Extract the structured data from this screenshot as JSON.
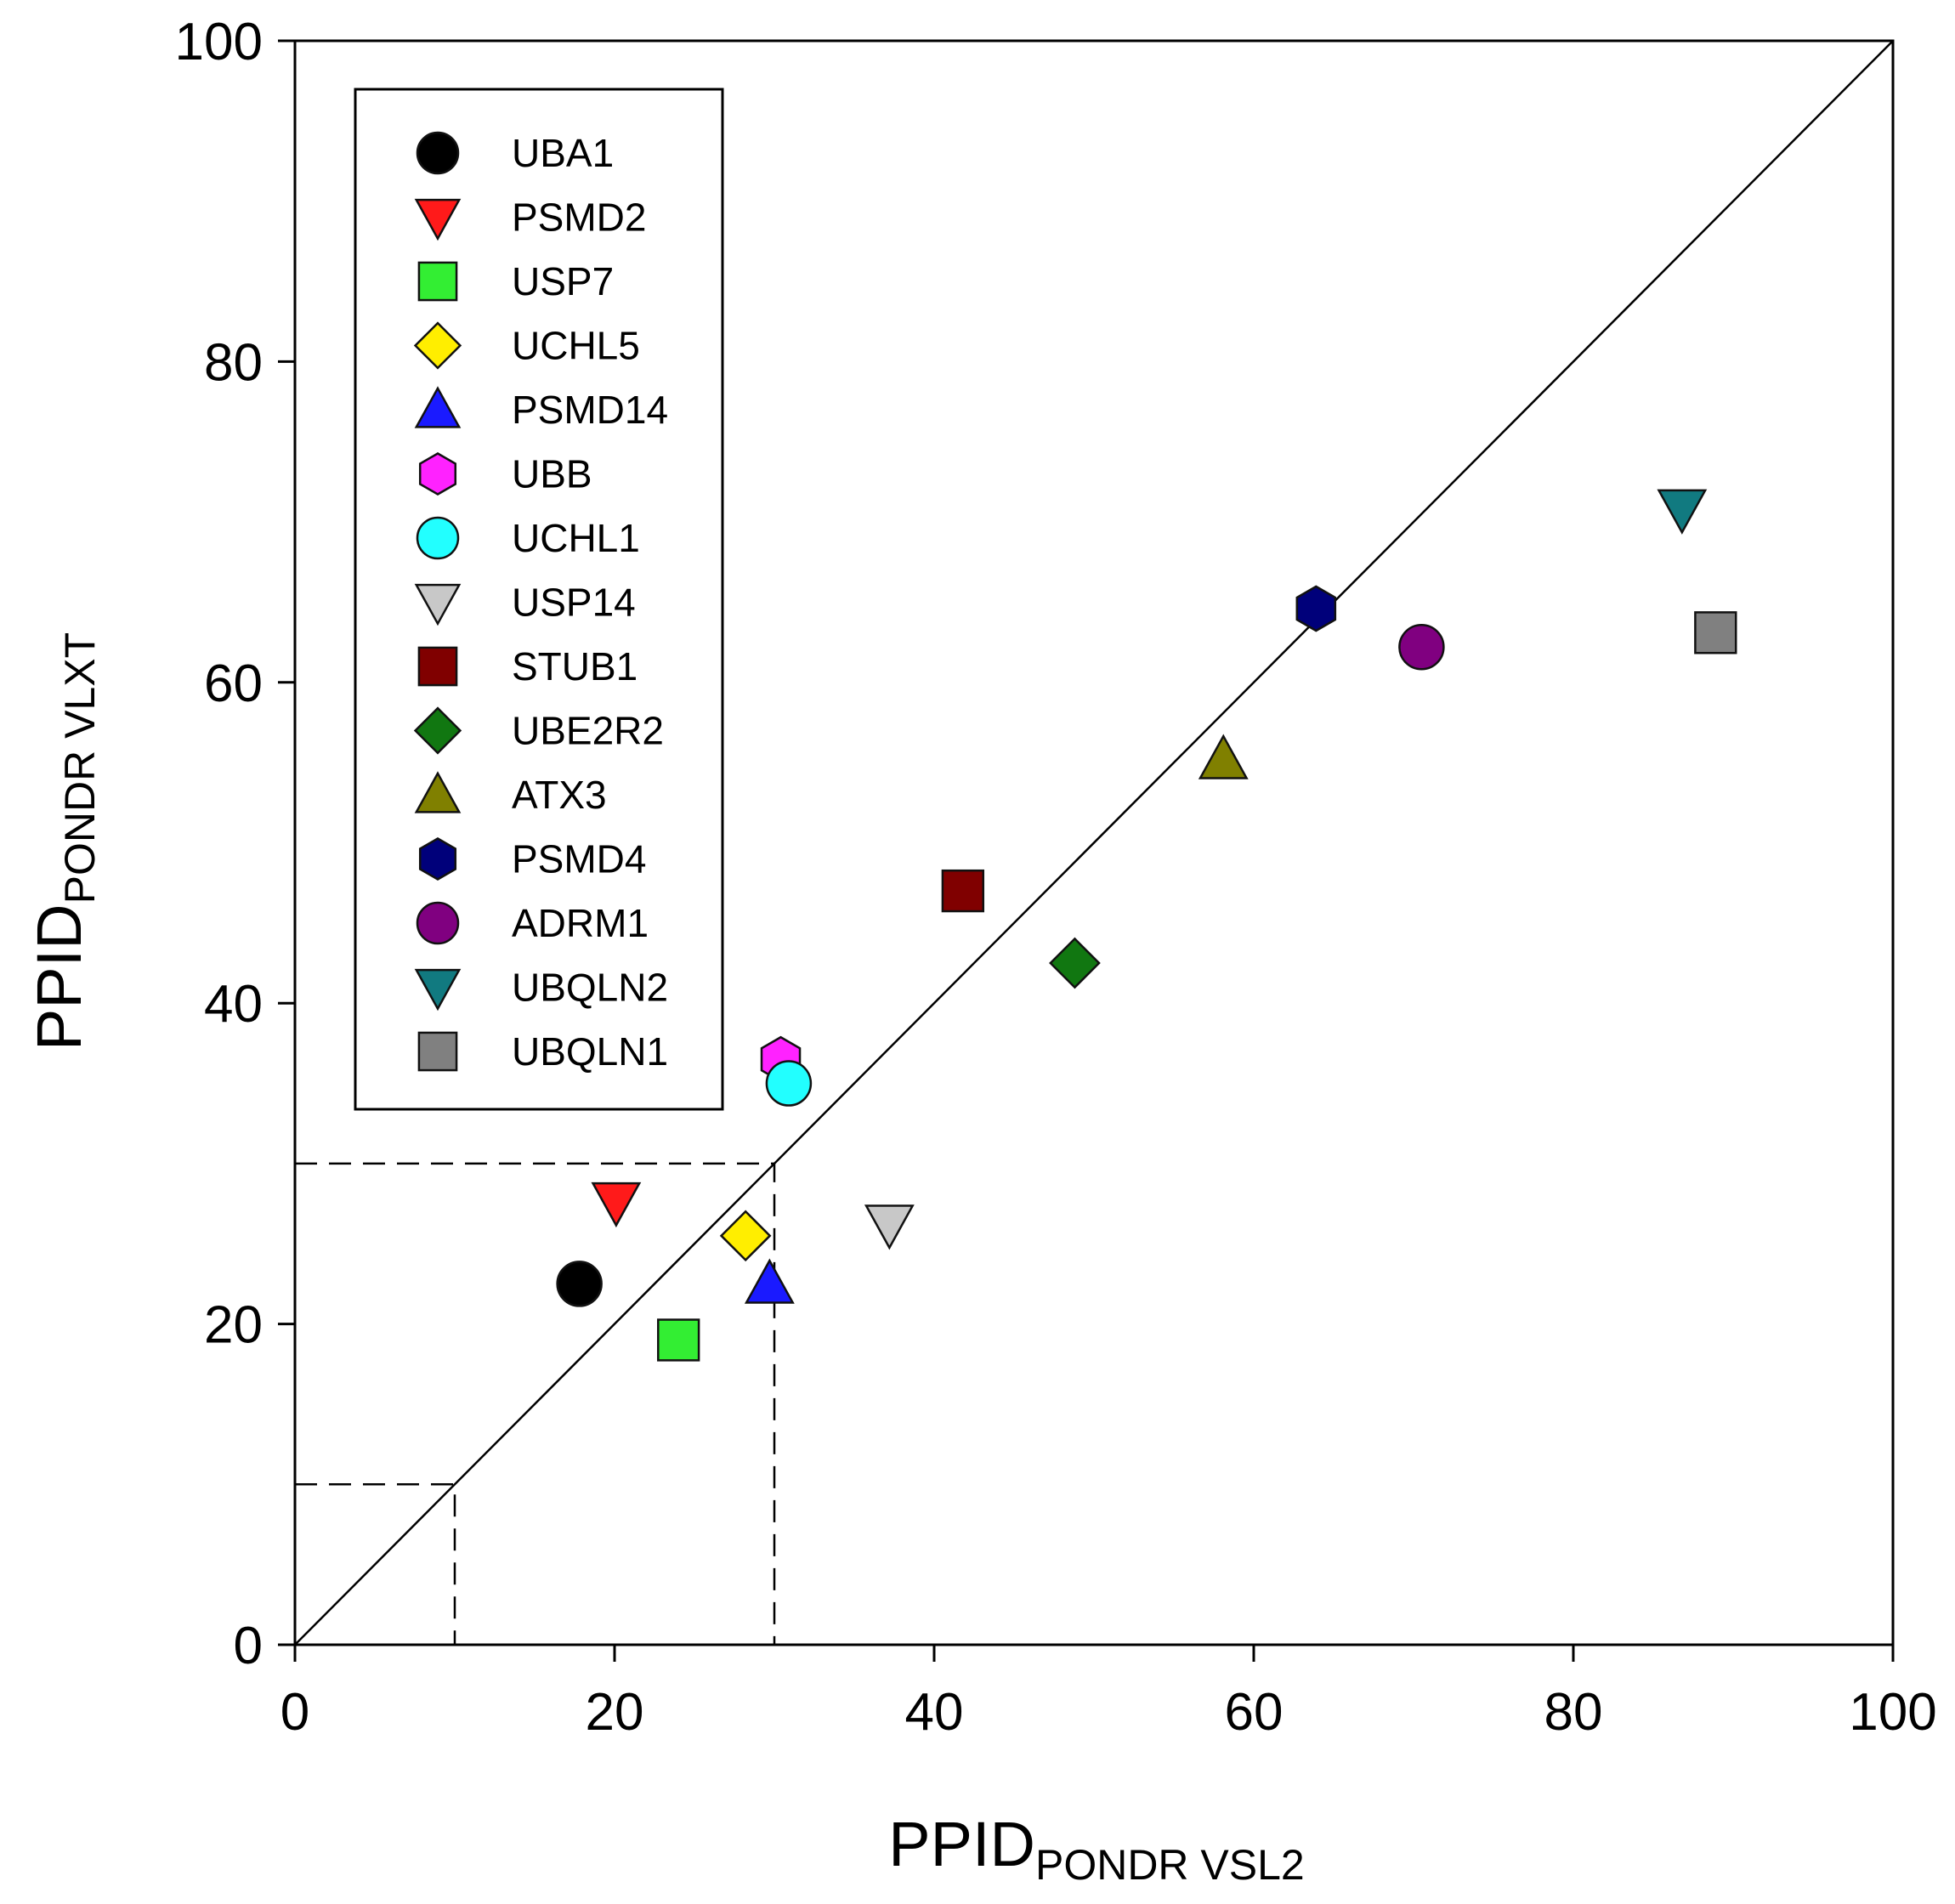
{
  "chart_data": {
    "type": "scatter",
    "title": "",
    "xlabel": "PPID",
    "xlabel_subscript": "PONDR VSL2",
    "ylabel": "PPID",
    "ylabel_subscript": "PONDR VLXT",
    "xlim": [
      0,
      100
    ],
    "ylim": [
      0,
      100
    ],
    "x_ticks": [
      "0",
      "20",
      "40",
      "60",
      "80",
      "100"
    ],
    "y_ticks": [
      "0",
      "20",
      "40",
      "60",
      "80",
      "100"
    ],
    "grid": false,
    "legend_position": "top-left",
    "reference_lines": [
      {
        "name": "diagonal",
        "style": "solid",
        "points": [
          [
            0,
            0
          ],
          [
            100,
            100
          ]
        ]
      },
      {
        "name": "threshold-30",
        "style": "dashed",
        "points": [
          [
            0,
            30
          ],
          [
            30,
            30
          ],
          [
            30,
            0
          ]
        ]
      },
      {
        "name": "threshold-10",
        "style": "dashed",
        "points": [
          [
            0,
            10
          ],
          [
            10,
            10
          ],
          [
            10,
            0
          ]
        ]
      }
    ],
    "series": [
      {
        "name": "UBA1",
        "marker": "circle",
        "color": "#000000",
        "x": 17.8,
        "y": 22.5
      },
      {
        "name": "PSMD2",
        "marker": "triangle-down",
        "color": "#ff1a1a",
        "x": 20.1,
        "y": 27.6
      },
      {
        "name": "USP7",
        "marker": "square",
        "color": "#33ee33",
        "x": 24.0,
        "y": 19.0
      },
      {
        "name": "UCHL5",
        "marker": "diamond",
        "color": "#ffee00",
        "x": 28.2,
        "y": 25.5
      },
      {
        "name": "PSMD14",
        "marker": "triangle-up",
        "color": "#1a1aff",
        "x": 29.7,
        "y": 22.5
      },
      {
        "name": "UBB",
        "marker": "hexagon",
        "color": "#ff22ff",
        "x": 30.4,
        "y": 36.5
      },
      {
        "name": "UCHL1",
        "marker": "circle",
        "color": "#22ffff",
        "x": 30.9,
        "y": 35.0
      },
      {
        "name": "USP14",
        "marker": "triangle-down",
        "color": "#c8c8c8",
        "x": 37.2,
        "y": 26.2
      },
      {
        "name": "STUB1",
        "marker": "square",
        "color": "#800000",
        "x": 41.8,
        "y": 47.0
      },
      {
        "name": "UBE2R2",
        "marker": "diamond",
        "color": "#117711",
        "x": 48.8,
        "y": 42.5
      },
      {
        "name": "ATX3",
        "marker": "triangle-up",
        "color": "#808000",
        "x": 58.1,
        "y": 55.2
      },
      {
        "name": "PSMD4",
        "marker": "hexagon",
        "color": "#00007a",
        "x": 63.9,
        "y": 64.6
      },
      {
        "name": "ADRM1",
        "marker": "circle",
        "color": "#800080",
        "x": 70.5,
        "y": 62.2
      },
      {
        "name": "UBQLN2",
        "marker": "triangle-down",
        "color": "#117a80",
        "x": 86.8,
        "y": 70.8
      },
      {
        "name": "UBQLN1",
        "marker": "square",
        "color": "#808080",
        "x": 88.9,
        "y": 63.1
      }
    ]
  }
}
